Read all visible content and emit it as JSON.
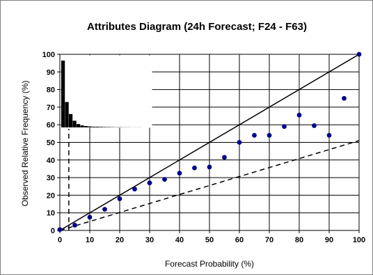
{
  "chart_data": {
    "type": "scatter",
    "title": "Attributes Diagram (24h Forecast; F24 - F63)",
    "xlabel": "Forecast Probability (%)",
    "ylabel": "Observed Relative Frequency (%)",
    "xlim": [
      0,
      100
    ],
    "ylim": [
      0,
      100
    ],
    "xticks": [
      "0",
      "10",
      "20",
      "30",
      "40",
      "50",
      "60",
      "70",
      "80",
      "90",
      "100"
    ],
    "yticks": [
      "0",
      "10",
      "20",
      "30",
      "40",
      "50",
      "60",
      "70",
      "80",
      "90",
      "100"
    ],
    "grid": true,
    "marker_color": "#00008B",
    "reference_lines": {
      "perfect_reliability": {
        "style": "solid",
        "from": [
          0,
          0
        ],
        "to": [
          100,
          100
        ]
      },
      "no_skill": {
        "style": "dashed",
        "from": [
          0,
          0
        ],
        "to": [
          100,
          51
        ]
      },
      "climatology": {
        "style": "dashed",
        "orientation": "vertical",
        "x": 3,
        "y_range": [
          0,
          60
        ]
      }
    },
    "points": [
      {
        "x": 0,
        "y": 0.5
      },
      {
        "x": 5,
        "y": 3
      },
      {
        "x": 10,
        "y": 7.5
      },
      {
        "x": 15,
        "y": 12
      },
      {
        "x": 20,
        "y": 18
      },
      {
        "x": 25,
        "y": 23.5
      },
      {
        "x": 30,
        "y": 27
      },
      {
        "x": 35,
        "y": 29
      },
      {
        "x": 40,
        "y": 32.5
      },
      {
        "x": 45,
        "y": 35.5
      },
      {
        "x": 50,
        "y": 36
      },
      {
        "x": 55,
        "y": 41.5
      },
      {
        "x": 60,
        "y": 50
      },
      {
        "x": 65,
        "y": 54
      },
      {
        "x": 70,
        "y": 54
      },
      {
        "x": 75,
        "y": 59
      },
      {
        "x": 80,
        "y": 65.5
      },
      {
        "x": 85,
        "y": 59.5
      },
      {
        "x": 90,
        "y": 54
      },
      {
        "x": 95,
        "y": 75
      },
      {
        "x": 100,
        "y": 100
      }
    ],
    "inset_histogram": {
      "type": "bar",
      "values": [
        100,
        38,
        20,
        10,
        5,
        3,
        2,
        1.5,
        1,
        1,
        0.8,
        0.6,
        0.5,
        0.4,
        0.3,
        0.3,
        0.2,
        0.2,
        0.1,
        0.1,
        0.1
      ],
      "bar_color": "#000000"
    }
  }
}
